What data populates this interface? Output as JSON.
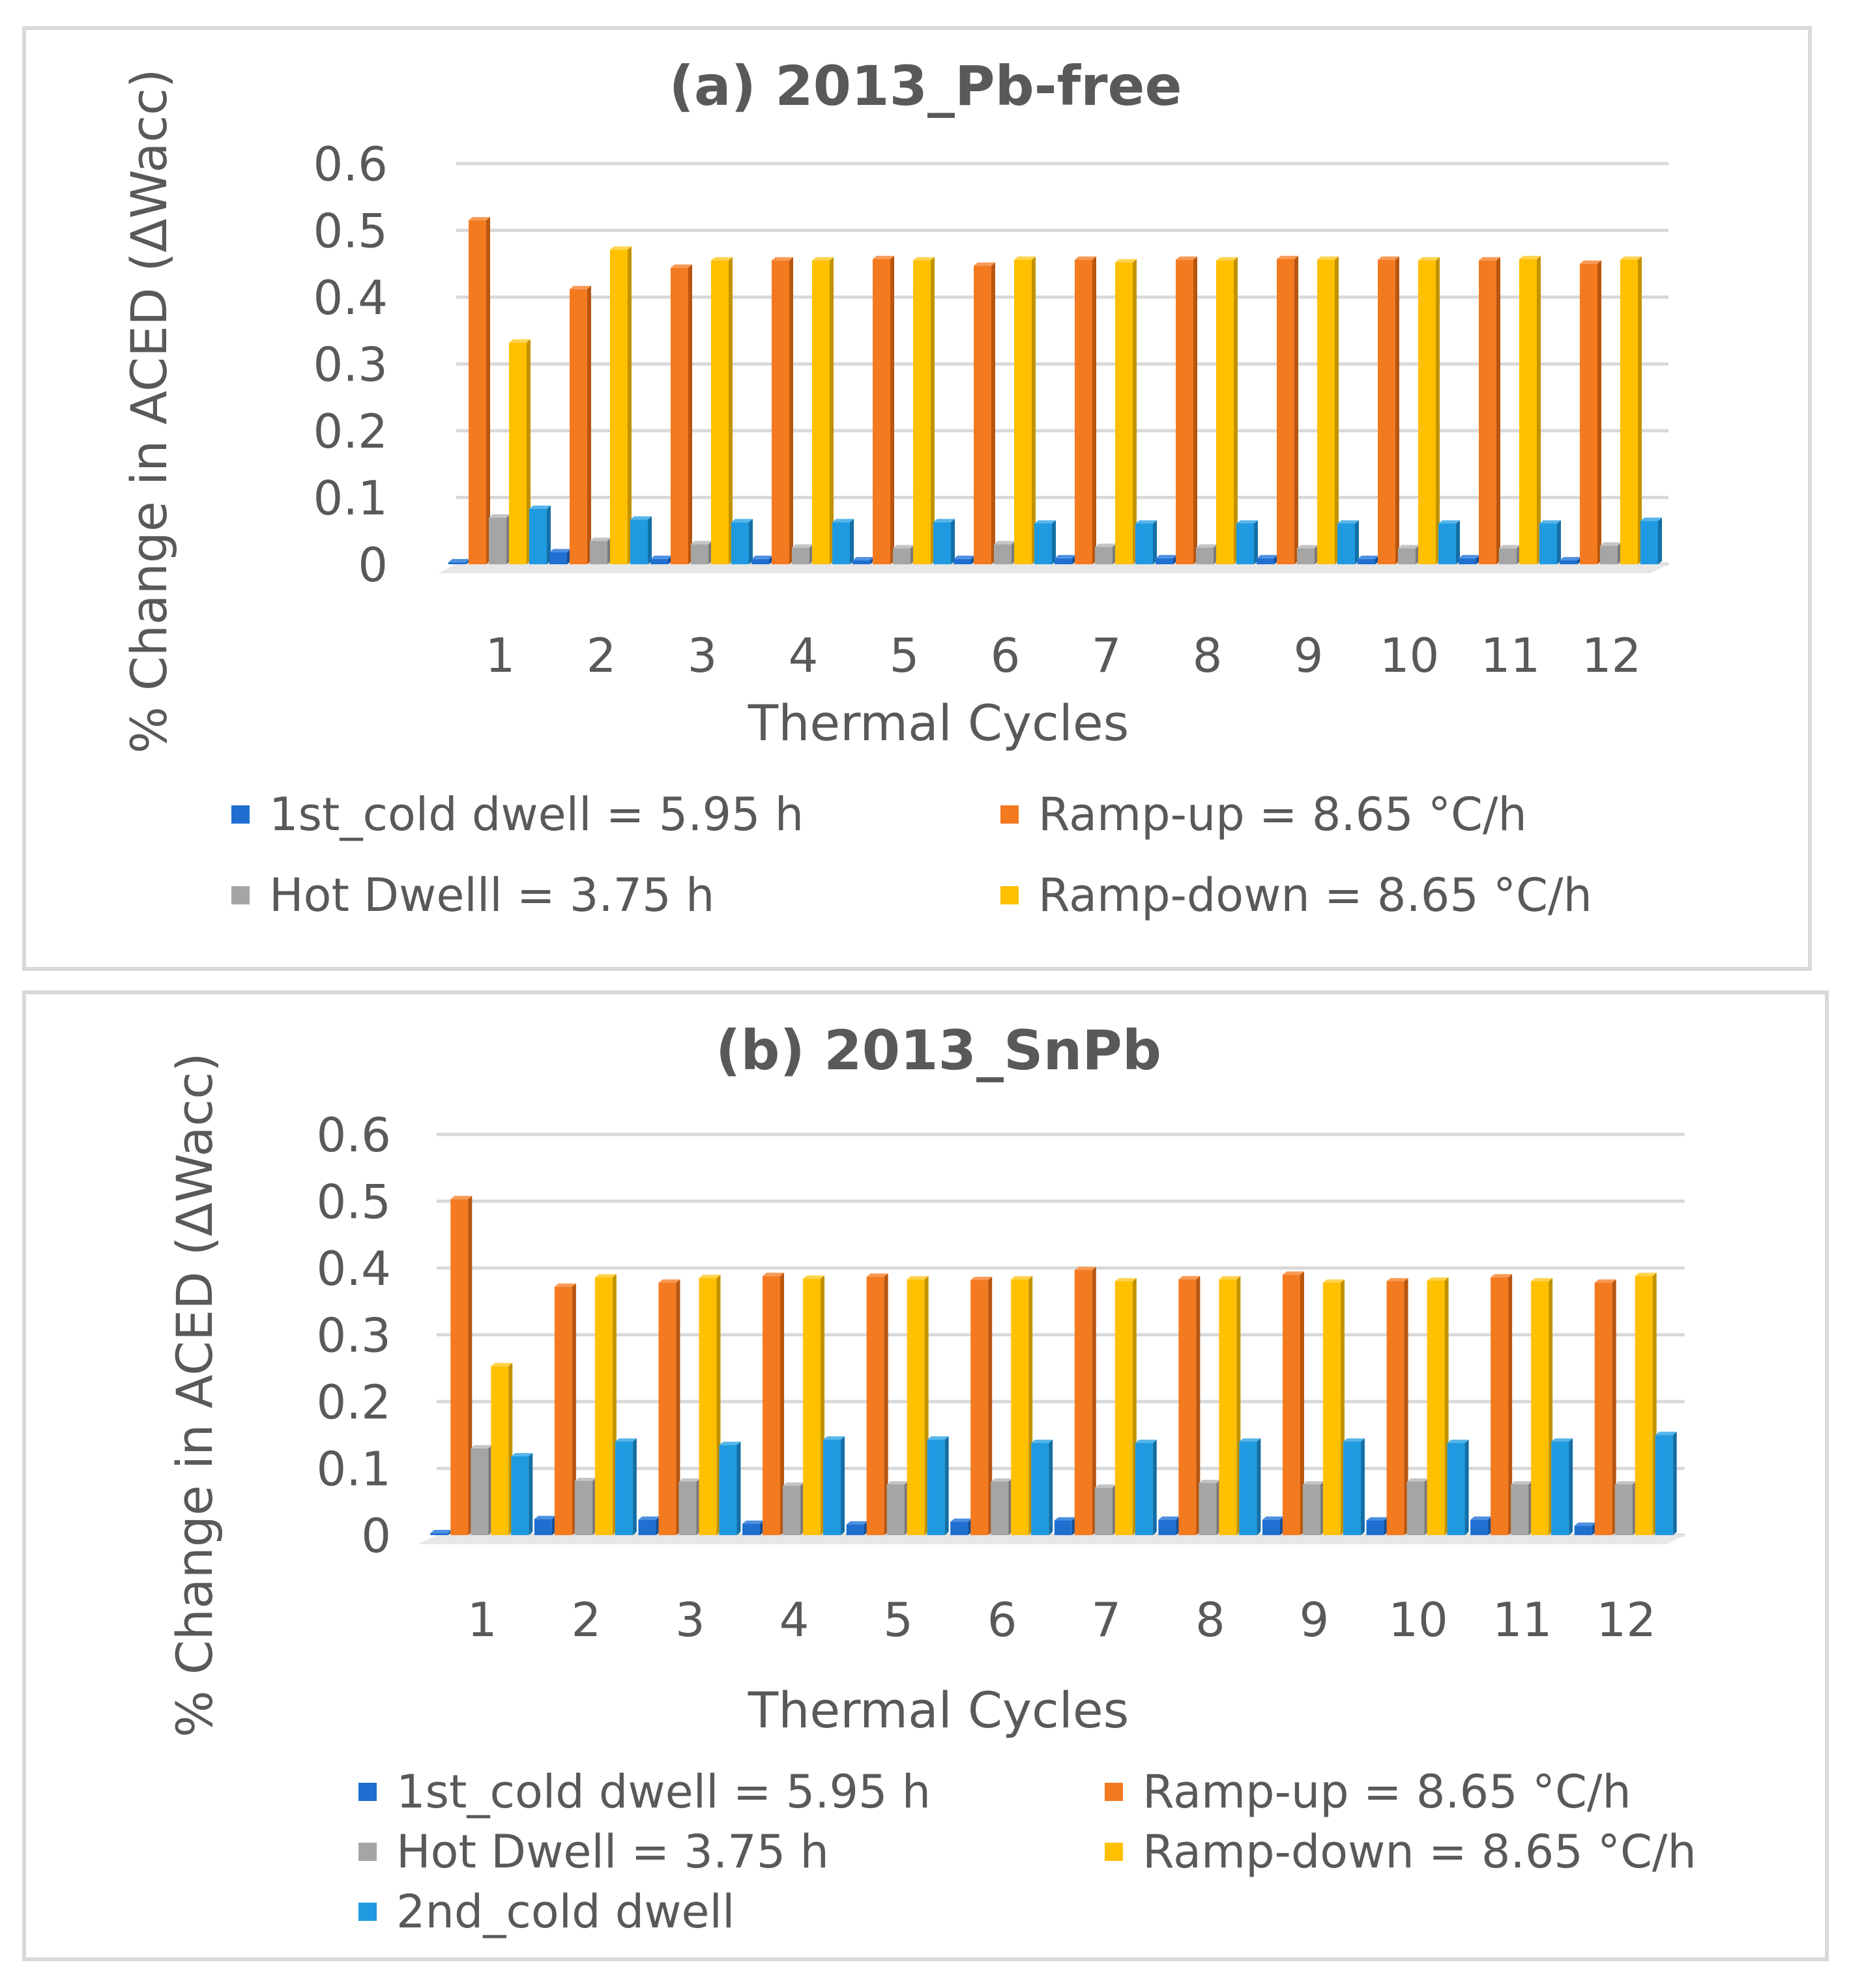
{
  "series_styles": [
    {
      "key": "cold1",
      "color": "#1f6fd1",
      "side": "#154e96",
      "top": "#4d8fe0"
    },
    {
      "key": "ramp_up",
      "color": "#f47a20",
      "side": "#b8560f",
      "top": "#f89a55"
    },
    {
      "key": "hot",
      "color": "#a5a5a5",
      "side": "#7a7a7a",
      "top": "#c4c4c4"
    },
    {
      "key": "ramp_down",
      "color": "#ffc000",
      "side": "#c29200",
      "top": "#ffd34d"
    },
    {
      "key": "cold2",
      "color": "#1f9ae0",
      "side": "#136fa6",
      "top": "#55b5ea"
    }
  ],
  "chart_data": [
    {
      "type": "bar",
      "title": "(a) 2013_Pb-free",
      "xlabel": "Thermal Cycles",
      "ylabel": "% Change in ACED (ΔWacc)",
      "ylim": [
        0,
        0.6
      ],
      "yticks": [
        "0",
        "0.1",
        "0.2",
        "0.3",
        "0.4",
        "0.5",
        "0.6"
      ],
      "categories": [
        "1",
        "2",
        "3",
        "4",
        "5",
        "6",
        "7",
        "8",
        "9",
        "10",
        "11",
        "12"
      ],
      "series": [
        {
          "name": "1st_cold dwell = 5.95 h",
          "values": [
            0.003,
            0.018,
            0.008,
            0.008,
            0.006,
            0.008,
            0.009,
            0.009,
            0.009,
            0.008,
            0.009,
            0.006
          ]
        },
        {
          "name": "Ramp-up = 8.65 °C/h",
          "values": [
            0.515,
            0.412,
            0.444,
            0.455,
            0.457,
            0.447,
            0.456,
            0.456,
            0.457,
            0.456,
            0.455,
            0.45
          ]
        },
        {
          "name": "Hot Dwelll = 3.75 h",
          "values": [
            0.07,
            0.035,
            0.03,
            0.025,
            0.024,
            0.03,
            0.026,
            0.025,
            0.024,
            0.024,
            0.024,
            0.028
          ]
        },
        {
          "name": "Ramp-down = 8.65 °C/h",
          "values": [
            0.332,
            0.471,
            0.455,
            0.455,
            0.455,
            0.456,
            0.452,
            0.455,
            0.456,
            0.455,
            0.457,
            0.456
          ]
        },
        {
          "name": "2nd_cold dwell",
          "values": [
            0.083,
            0.067,
            0.063,
            0.063,
            0.063,
            0.061,
            0.061,
            0.061,
            0.061,
            0.061,
            0.061,
            0.065
          ]
        }
      ],
      "legend": [
        {
          "label": "1st_cold dwell = 5.95 h",
          "series": 0
        },
        {
          "label": "Ramp-up = 8.65 °C/h",
          "series": 1
        },
        {
          "label": "Hot Dwelll = 3.75 h",
          "series": 2
        },
        {
          "label": "Ramp-down = 8.65 °C/h",
          "series": 3
        }
      ]
    },
    {
      "type": "bar",
      "title": "(b) 2013_SnPb",
      "xlabel": "Thermal Cycles",
      "ylabel": "% Change in ACED (ΔWacc)",
      "ylim": [
        0,
        0.6
      ],
      "yticks": [
        "0",
        "0.1",
        "0.2",
        "0.3",
        "0.4",
        "0.5",
        "0.6"
      ],
      "categories": [
        "1",
        "2",
        "3",
        "4",
        "5",
        "6",
        "7",
        "8",
        "9",
        "10",
        "11",
        "12"
      ],
      "series": [
        {
          "name": "1st_cold dwell = 5.95 h",
          "values": [
            0.003,
            0.024,
            0.023,
            0.017,
            0.016,
            0.02,
            0.022,
            0.023,
            0.023,
            0.022,
            0.023,
            0.014
          ]
        },
        {
          "name": "Ramp-up = 8.65 °C/h",
          "values": [
            0.503,
            0.372,
            0.378,
            0.388,
            0.387,
            0.382,
            0.397,
            0.383,
            0.39,
            0.38,
            0.386,
            0.378
          ]
        },
        {
          "name": "Hot Dwell = 3.75 h",
          "values": [
            0.13,
            0.081,
            0.08,
            0.074,
            0.076,
            0.08,
            0.071,
            0.078,
            0.076,
            0.08,
            0.076,
            0.076
          ]
        },
        {
          "name": "Ramp-down = 8.65 °C/h",
          "values": [
            0.253,
            0.386,
            0.385,
            0.384,
            0.383,
            0.383,
            0.38,
            0.383,
            0.378,
            0.381,
            0.38,
            0.388
          ]
        },
        {
          "name": "2nd_cold dwell",
          "values": [
            0.118,
            0.14,
            0.135,
            0.143,
            0.143,
            0.138,
            0.138,
            0.14,
            0.14,
            0.138,
            0.14,
            0.15
          ]
        }
      ],
      "legend": [
        {
          "label": "1st_cold dwell = 5.95 h",
          "series": 0
        },
        {
          "label": "Ramp-up = 8.65 °C/h",
          "series": 1
        },
        {
          "label": "Hot Dwell = 3.75 h",
          "series": 2
        },
        {
          "label": "Ramp-down = 8.65 °C/h",
          "series": 3
        },
        {
          "label": "2nd_cold dwell",
          "series": 4
        }
      ]
    }
  ]
}
